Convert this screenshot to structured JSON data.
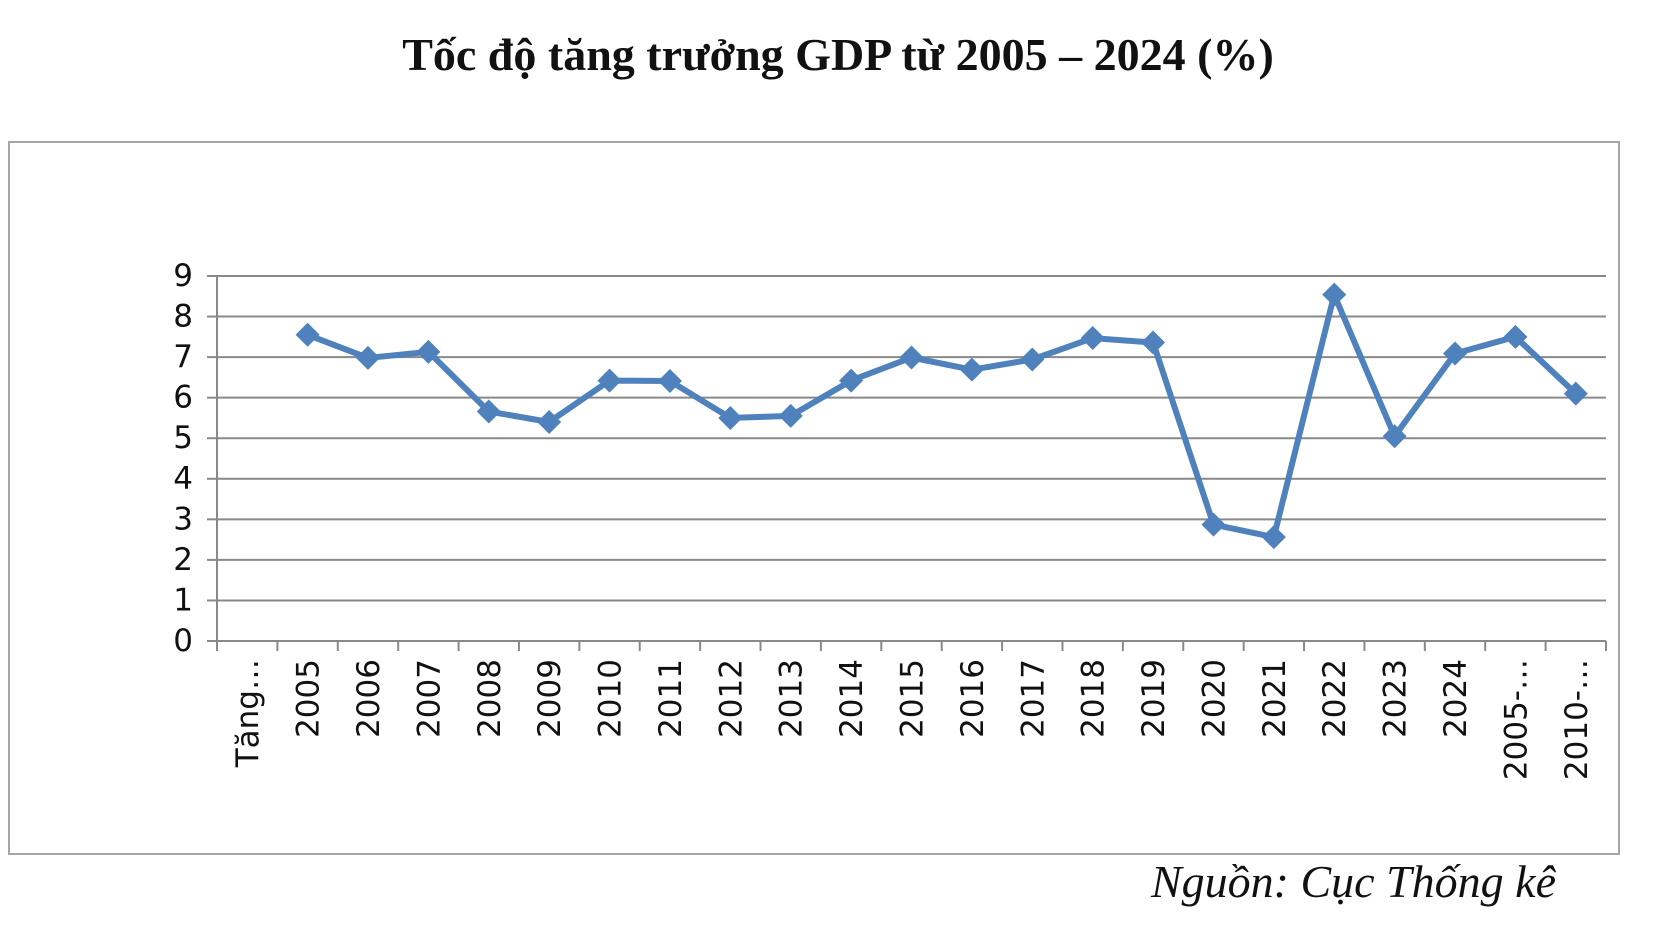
{
  "title": "Tốc độ tăng trưởng GDP từ 2005 – 2024 (%)",
  "source": "Nguồn: Cục Thống kê",
  "colors": {
    "series": "#4f81bd",
    "grid": "#898989",
    "axis": "#898989",
    "text": "#111111"
  },
  "chart_data": {
    "type": "line",
    "title": "Tốc độ tăng trưởng GDP từ 2005 – 2024 (%)",
    "xlabel": "",
    "ylabel": "",
    "categories": [
      "Tăng…",
      "2005",
      "2006",
      "2007",
      "2008",
      "2009",
      "2010",
      "2011",
      "2012",
      "2013",
      "2014",
      "2015",
      "2016",
      "2017",
      "2018",
      "2019",
      "2020",
      "2021",
      "2022",
      "2023",
      "2024",
      "2005-…",
      "2010-…"
    ],
    "yticks": [
      "0",
      "1",
      "2",
      "3",
      "4",
      "5",
      "6",
      "7",
      "8",
      "9"
    ],
    "ylim": [
      0,
      9
    ],
    "grid": true,
    "legend": "none",
    "marker": "diamond",
    "series": [
      {
        "values": [
          null,
          7.55,
          6.98,
          7.13,
          5.66,
          5.4,
          6.42,
          6.41,
          5.5,
          5.55,
          6.42,
          6.99,
          6.69,
          6.94,
          7.47,
          7.36,
          2.87,
          2.56,
          8.54,
          5.05,
          7.09,
          7.5,
          6.1
        ]
      }
    ]
  }
}
